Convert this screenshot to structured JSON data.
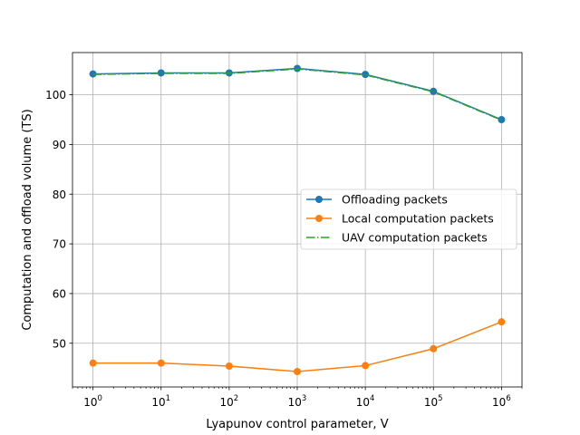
{
  "chart_data": {
    "type": "line",
    "title": "",
    "xlabel": "Lyapunov control parameter, V",
    "ylabel": "Computation and offload volume (TS)",
    "x_scale": "log",
    "x": [
      1,
      10,
      100,
      1000,
      10000,
      100000,
      1000000
    ],
    "x_tick_labels": [
      {
        "base": "10",
        "exp": "0"
      },
      {
        "base": "10",
        "exp": "1"
      },
      {
        "base": "10",
        "exp": "2"
      },
      {
        "base": "10",
        "exp": "3"
      },
      {
        "base": "10",
        "exp": "4"
      },
      {
        "base": "10",
        "exp": "5"
      },
      {
        "base": "10",
        "exp": "6"
      }
    ],
    "xlim": [
      0.5,
      2000000
    ],
    "ylim": [
      41.2,
      108.5
    ],
    "y_ticks": [
      50,
      60,
      70,
      80,
      90,
      100
    ],
    "y_tick_labels": [
      "50",
      "60",
      "70",
      "80",
      "90",
      "100"
    ],
    "grid": true,
    "legend_position": "center-right",
    "series": [
      {
        "name": "Offloading packets",
        "values": [
          104.2,
          104.4,
          104.4,
          105.3,
          104.1,
          100.7,
          95.0
        ],
        "color": "#1f77b4",
        "line_style": "solid",
        "marker": "circle"
      },
      {
        "name": "Local computation packets",
        "values": [
          46.0,
          46.0,
          45.4,
          44.3,
          45.5,
          48.9,
          54.3
        ],
        "color": "#ff7f0e",
        "line_style": "solid",
        "marker": "circle"
      },
      {
        "name": "UAV computation packets",
        "values": [
          104.1,
          104.3,
          104.3,
          105.2,
          104.0,
          100.6,
          94.9
        ],
        "color": "#2ca02c",
        "line_style": "dashdot",
        "marker": "none"
      }
    ]
  }
}
